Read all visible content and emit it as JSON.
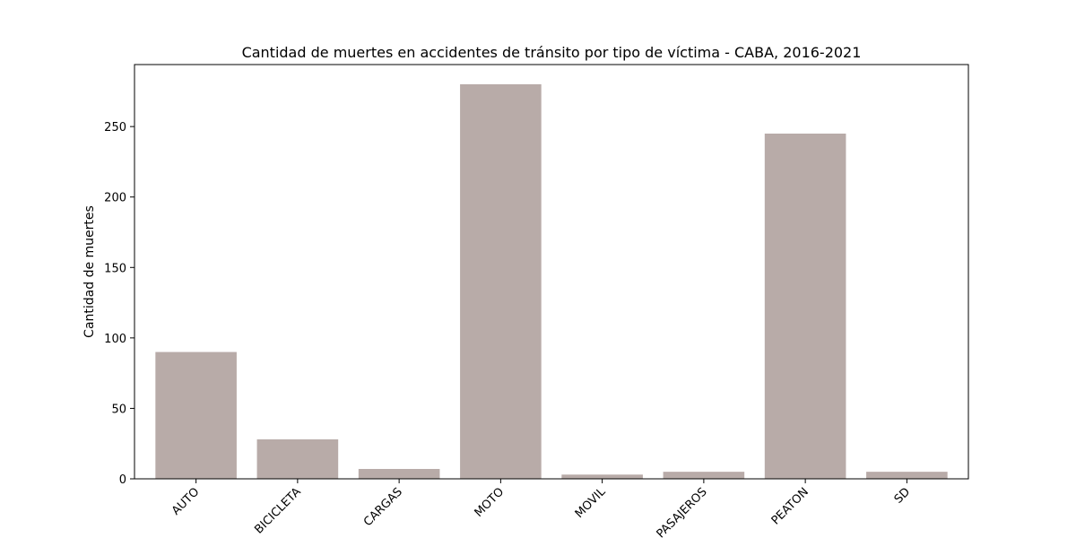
{
  "chart_data": {
    "type": "bar",
    "title": "Cantidad de muertes en accidentes de tránsito por tipo de víctima - CABA, 2016-2021",
    "xlabel": "",
    "ylabel": "Cantidad de muertes",
    "categories": [
      "AUTO",
      "BICICLETA",
      "CARGAS",
      "MOTO",
      "MOVIL",
      "PASAJEROS",
      "PEATON",
      "SD"
    ],
    "values": [
      90,
      28,
      7,
      280,
      3,
      5,
      245,
      5
    ],
    "ylim": [
      0,
      294
    ],
    "yticks": [
      0,
      50,
      100,
      150,
      200,
      250
    ],
    "bar_color": "#b8aba8",
    "grid": false,
    "legend": "none"
  }
}
